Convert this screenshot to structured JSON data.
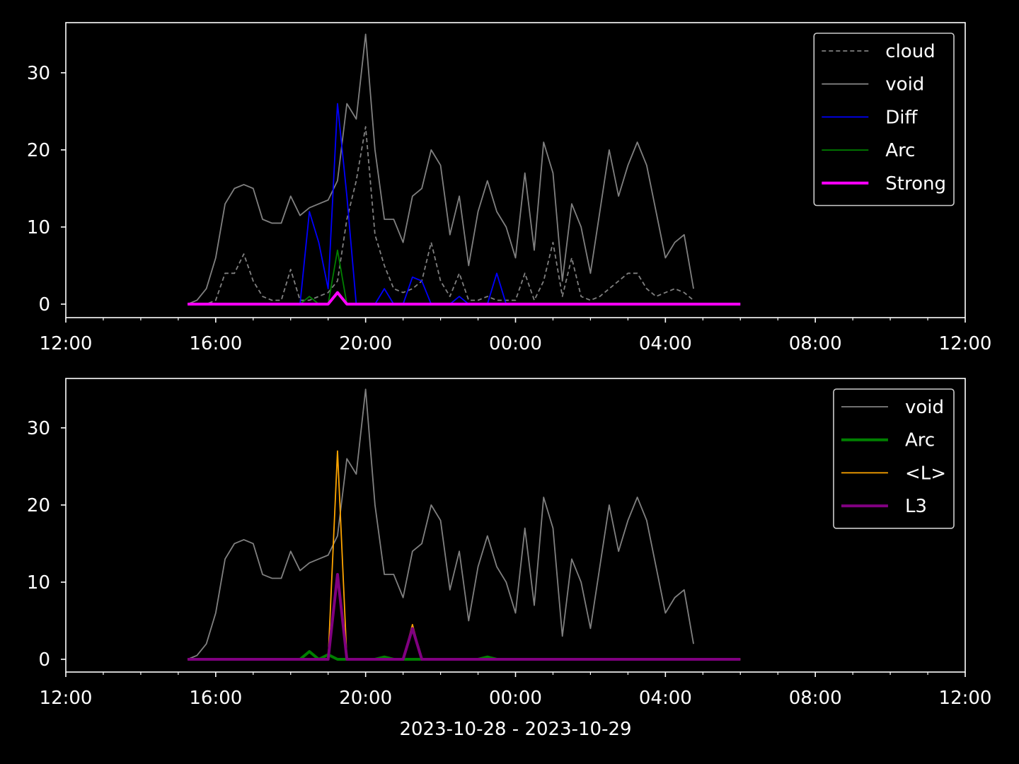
{
  "chart_data": [
    {
      "type": "line",
      "x": [
        3.25,
        3.5,
        3.75,
        4,
        4.25,
        4.5,
        4.75,
        5,
        5.25,
        5.5,
        5.75,
        6,
        6.25,
        6.5,
        6.75,
        7,
        7.25,
        7.5,
        7.75,
        8,
        8.25,
        8.5,
        8.75,
        9,
        9.25,
        9.5,
        9.75,
        10,
        10.25,
        10.5,
        10.75,
        11,
        11.25,
        11.5,
        11.75,
        12,
        12.25,
        12.5,
        12.75,
        13,
        13.25,
        13.5,
        13.75,
        14,
        14.25,
        14.5,
        14.75,
        15,
        15.25,
        15.5,
        15.75,
        16,
        16.25,
        16.5,
        16.75,
        17,
        17.25,
        17.5,
        17.75,
        18
      ],
      "xlim": [
        0,
        24
      ],
      "xticks": [
        {
          "value": 0,
          "label": "12:00"
        },
        {
          "value": 4,
          "label": "16:00"
        },
        {
          "value": 8,
          "label": "20:00"
        },
        {
          "value": 12,
          "label": "00:00"
        },
        {
          "value": 16,
          "label": "04:00"
        },
        {
          "value": 20,
          "label": "08:00"
        },
        {
          "value": 24,
          "label": "12:00"
        }
      ],
      "xminorticks": [
        1,
        2,
        3,
        5,
        6,
        7,
        9,
        10,
        11,
        13,
        14,
        15,
        17,
        18,
        19,
        21,
        22,
        23
      ],
      "ylim": [
        -1.75,
        36.5
      ],
      "yticks": [
        0,
        10,
        20,
        30
      ],
      "legend": "upper right",
      "series": [
        {
          "name": "cloud",
          "color": "#808080",
          "linestyle": "dashed",
          "linewidth": 1.8,
          "values": [
            0,
            0,
            0,
            0.5,
            4,
            4,
            6.5,
            3,
            1,
            0.5,
            0.5,
            4.5,
            0.5,
            0.5,
            1,
            1.5,
            3,
            11,
            16,
            23,
            9,
            5,
            2,
            1.5,
            2,
            3,
            8,
            3,
            1,
            4,
            0.5,
            0.5,
            1,
            0.5,
            0.5,
            0.5,
            4,
            0.5,
            3,
            8,
            1,
            6,
            1,
            0.5,
            1,
            2,
            3,
            4,
            4,
            2,
            1,
            1.5,
            2,
            1.5,
            0.5,
            null,
            null,
            null,
            null,
            null
          ]
        },
        {
          "name": "void",
          "color": "#808080",
          "linestyle": "solid",
          "linewidth": 1.8,
          "values": [
            0,
            0.5,
            2,
            6,
            13,
            15,
            15.5,
            15,
            11,
            10.5,
            10.5,
            14,
            11.5,
            12.5,
            13,
            13.5,
            16,
            26,
            24,
            35,
            20,
            11,
            11,
            8,
            14,
            15,
            20,
            18,
            9,
            14,
            5,
            12,
            16,
            12,
            10,
            6,
            17,
            7,
            21,
            17,
            3,
            13,
            10,
            4,
            12,
            20,
            14,
            18,
            21,
            18,
            12,
            6,
            8,
            9,
            2,
            null,
            null,
            null,
            null,
            null
          ]
        },
        {
          "name": "Diff",
          "color": "#0000ff",
          "linestyle": "solid",
          "linewidth": 1.8,
          "values": [
            0,
            0,
            0,
            0,
            0,
            0,
            0,
            0,
            0,
            0,
            0,
            0,
            0,
            12,
            8,
            2,
            26,
            14,
            0,
            0,
            0,
            2,
            0,
            0,
            3.5,
            3,
            0,
            0,
            0,
            1,
            0,
            0,
            0,
            4,
            0,
            0,
            0,
            0,
            0,
            0,
            0,
            0,
            0,
            0,
            0,
            0,
            0,
            0,
            0,
            0,
            0,
            0,
            0,
            0,
            0,
            0,
            0,
            0,
            0,
            0
          ]
        },
        {
          "name": "Arc",
          "color": "#008000",
          "linestyle": "solid",
          "linewidth": 1.8,
          "values": [
            0,
            0,
            0,
            0,
            0,
            0,
            0,
            0,
            0,
            0,
            0,
            0,
            0,
            1,
            0,
            0,
            7,
            0,
            0,
            0,
            0,
            0,
            0,
            0,
            0,
            0,
            0,
            0,
            0,
            0,
            0,
            0,
            0,
            0,
            0,
            0,
            0,
            0,
            0,
            0,
            0,
            0,
            0,
            0,
            0,
            0,
            0,
            0,
            0,
            0,
            0,
            0,
            0,
            0,
            0,
            0,
            0,
            0,
            0,
            0
          ]
        },
        {
          "name": "Strong",
          "color": "#ff00ff",
          "linestyle": "solid",
          "linewidth": 4,
          "values": [
            0,
            0,
            0,
            0,
            0,
            0,
            0,
            0,
            0,
            0,
            0,
            0,
            0,
            0,
            0,
            0,
            1.5,
            0,
            0,
            0,
            0,
            0,
            0,
            0,
            0,
            0,
            0,
            0,
            0,
            0,
            0,
            0,
            0,
            0,
            0,
            0,
            0,
            0,
            0,
            0,
            0,
            0,
            0,
            0,
            0,
            0,
            0,
            0,
            0,
            0,
            0,
            0,
            0,
            0,
            0,
            0,
            0,
            0,
            0,
            0
          ]
        }
      ]
    },
    {
      "type": "line",
      "xlabel": "2023-10-28 - 2023-10-29",
      "x": [
        3.25,
        3.5,
        3.75,
        4,
        4.25,
        4.5,
        4.75,
        5,
        5.25,
        5.5,
        5.75,
        6,
        6.25,
        6.5,
        6.75,
        7,
        7.25,
        7.5,
        7.75,
        8,
        8.25,
        8.5,
        8.75,
        9,
        9.25,
        9.5,
        9.75,
        10,
        10.25,
        10.5,
        10.75,
        11,
        11.25,
        11.5,
        11.75,
        12,
        12.25,
        12.5,
        12.75,
        13,
        13.25,
        13.5,
        13.75,
        14,
        14.25,
        14.5,
        14.75,
        15,
        15.25,
        15.5,
        15.75,
        16,
        16.25,
        16.5,
        16.75,
        17,
        17.25,
        17.5,
        17.75,
        18
      ],
      "xlim": [
        0,
        24
      ],
      "xticks": [
        {
          "value": 0,
          "label": "12:00"
        },
        {
          "value": 4,
          "label": "16:00"
        },
        {
          "value": 8,
          "label": "20:00"
        },
        {
          "value": 12,
          "label": "00:00"
        },
        {
          "value": 16,
          "label": "04:00"
        },
        {
          "value": 20,
          "label": "08:00"
        },
        {
          "value": 24,
          "label": "12:00"
        }
      ],
      "xminorticks": [
        1,
        2,
        3,
        5,
        6,
        7,
        9,
        10,
        11,
        13,
        14,
        15,
        17,
        18,
        19,
        21,
        22,
        23
      ],
      "ylim": [
        -1.65,
        36.4
      ],
      "yticks": [
        0,
        10,
        20,
        30
      ],
      "legend": "upper right",
      "series": [
        {
          "name": "void",
          "color": "#808080",
          "linestyle": "solid",
          "linewidth": 1.8,
          "values": [
            0,
            0.5,
            2,
            6,
            13,
            15,
            15.5,
            15,
            11,
            10.5,
            10.5,
            14,
            11.5,
            12.5,
            13,
            13.5,
            16,
            26,
            24,
            35,
            20,
            11,
            11,
            8,
            14,
            15,
            20,
            18,
            9,
            14,
            5,
            12,
            16,
            12,
            10,
            6,
            17,
            7,
            21,
            17,
            3,
            13,
            10,
            4,
            12,
            20,
            14,
            18,
            21,
            18,
            12,
            6,
            8,
            9,
            2,
            null,
            null,
            null,
            null,
            null
          ]
        },
        {
          "name": "Arc",
          "color": "#008000",
          "linestyle": "solid",
          "linewidth": 4,
          "values": [
            0,
            0,
            0,
            0,
            0,
            0,
            0,
            0,
            0,
            0,
            0,
            0,
            0,
            1,
            0,
            0.6,
            0,
            0,
            0,
            0,
            0,
            0.3,
            0,
            0,
            0,
            0,
            0,
            0,
            0,
            0,
            0,
            0,
            0.3,
            0,
            0,
            0,
            0,
            0,
            0,
            0,
            0,
            0,
            0,
            0,
            0,
            0,
            0,
            0,
            0,
            0,
            0,
            0,
            0,
            0,
            0,
            0,
            0,
            0,
            0,
            0
          ]
        },
        {
          "name": "<L>",
          "color": "#ffa500",
          "linestyle": "solid",
          "linewidth": 1.8,
          "values": [
            0,
            0,
            0,
            0,
            0,
            0,
            0,
            0,
            0,
            0,
            0,
            0,
            0,
            0,
            0,
            0,
            27,
            0,
            0,
            0,
            0,
            0,
            0,
            0,
            4.5,
            0,
            0,
            0,
            0,
            0,
            0,
            0,
            0,
            0,
            0,
            0,
            0,
            0,
            0,
            0,
            0,
            0,
            0,
            0,
            0,
            0,
            0,
            0,
            0,
            0,
            0,
            0,
            0,
            0,
            0,
            0,
            0,
            0,
            0,
            0
          ]
        },
        {
          "name": "L3",
          "color": "#800080",
          "linestyle": "solid",
          "linewidth": 4,
          "values": [
            0,
            0,
            0,
            0,
            0,
            0,
            0,
            0,
            0,
            0,
            0,
            0,
            0,
            0,
            0,
            0,
            11,
            0,
            0,
            0,
            0,
            0,
            0,
            0,
            4,
            0,
            0,
            0,
            0,
            0,
            0,
            0,
            0,
            0,
            0,
            0,
            0,
            0,
            0,
            0,
            0,
            0,
            0,
            0,
            0,
            0,
            0,
            0,
            0,
            0,
            0,
            0,
            0,
            0,
            0,
            0,
            0,
            0,
            0,
            0
          ]
        }
      ]
    }
  ]
}
